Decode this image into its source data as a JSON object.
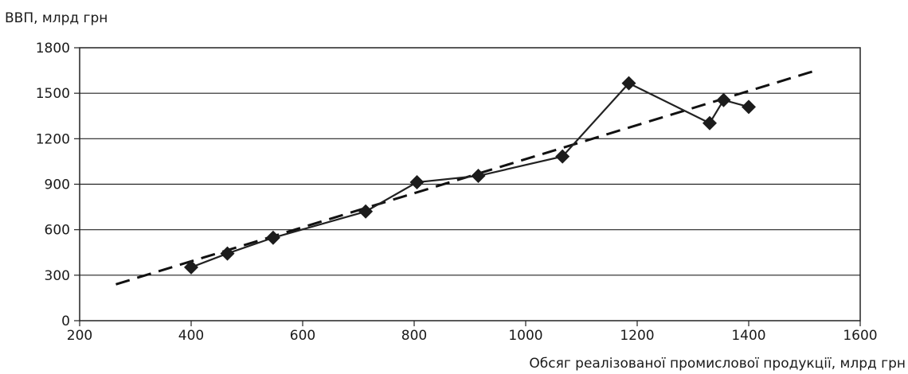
{
  "chart_data": {
    "type": "line",
    "title": "",
    "ylabel": "ВВП, млрд грн",
    "xlabel": "Обсяг реалізованої промислової продукції, млрд грн",
    "xlim": [
      200,
      1600
    ],
    "ylim": [
      0,
      1800
    ],
    "x_ticks": [
      "200",
      "400",
      "600",
      "800",
      "1000",
      "1200",
      "1400",
      "1600"
    ],
    "y_ticks": [
      "0",
      "300",
      "600",
      "900",
      "1200",
      "1500",
      "1800"
    ],
    "grid": "horizontal",
    "series": [
      {
        "style": "solid with diamond markers",
        "color": "#222222",
        "points": [
          [
            400,
            352
          ],
          [
            465,
            443
          ],
          [
            547,
            547
          ],
          [
            713,
            720
          ],
          [
            805,
            913
          ],
          [
            915,
            955
          ],
          [
            1066,
            1083
          ],
          [
            1185,
            1566
          ],
          [
            1330,
            1303
          ],
          [
            1355,
            1455
          ],
          [
            1400,
            1410
          ]
        ]
      },
      {
        "style": "dashed trend line",
        "color": "#111111",
        "points": [
          [
            265,
            240
          ],
          [
            1525,
            1655
          ]
        ]
      }
    ]
  }
}
